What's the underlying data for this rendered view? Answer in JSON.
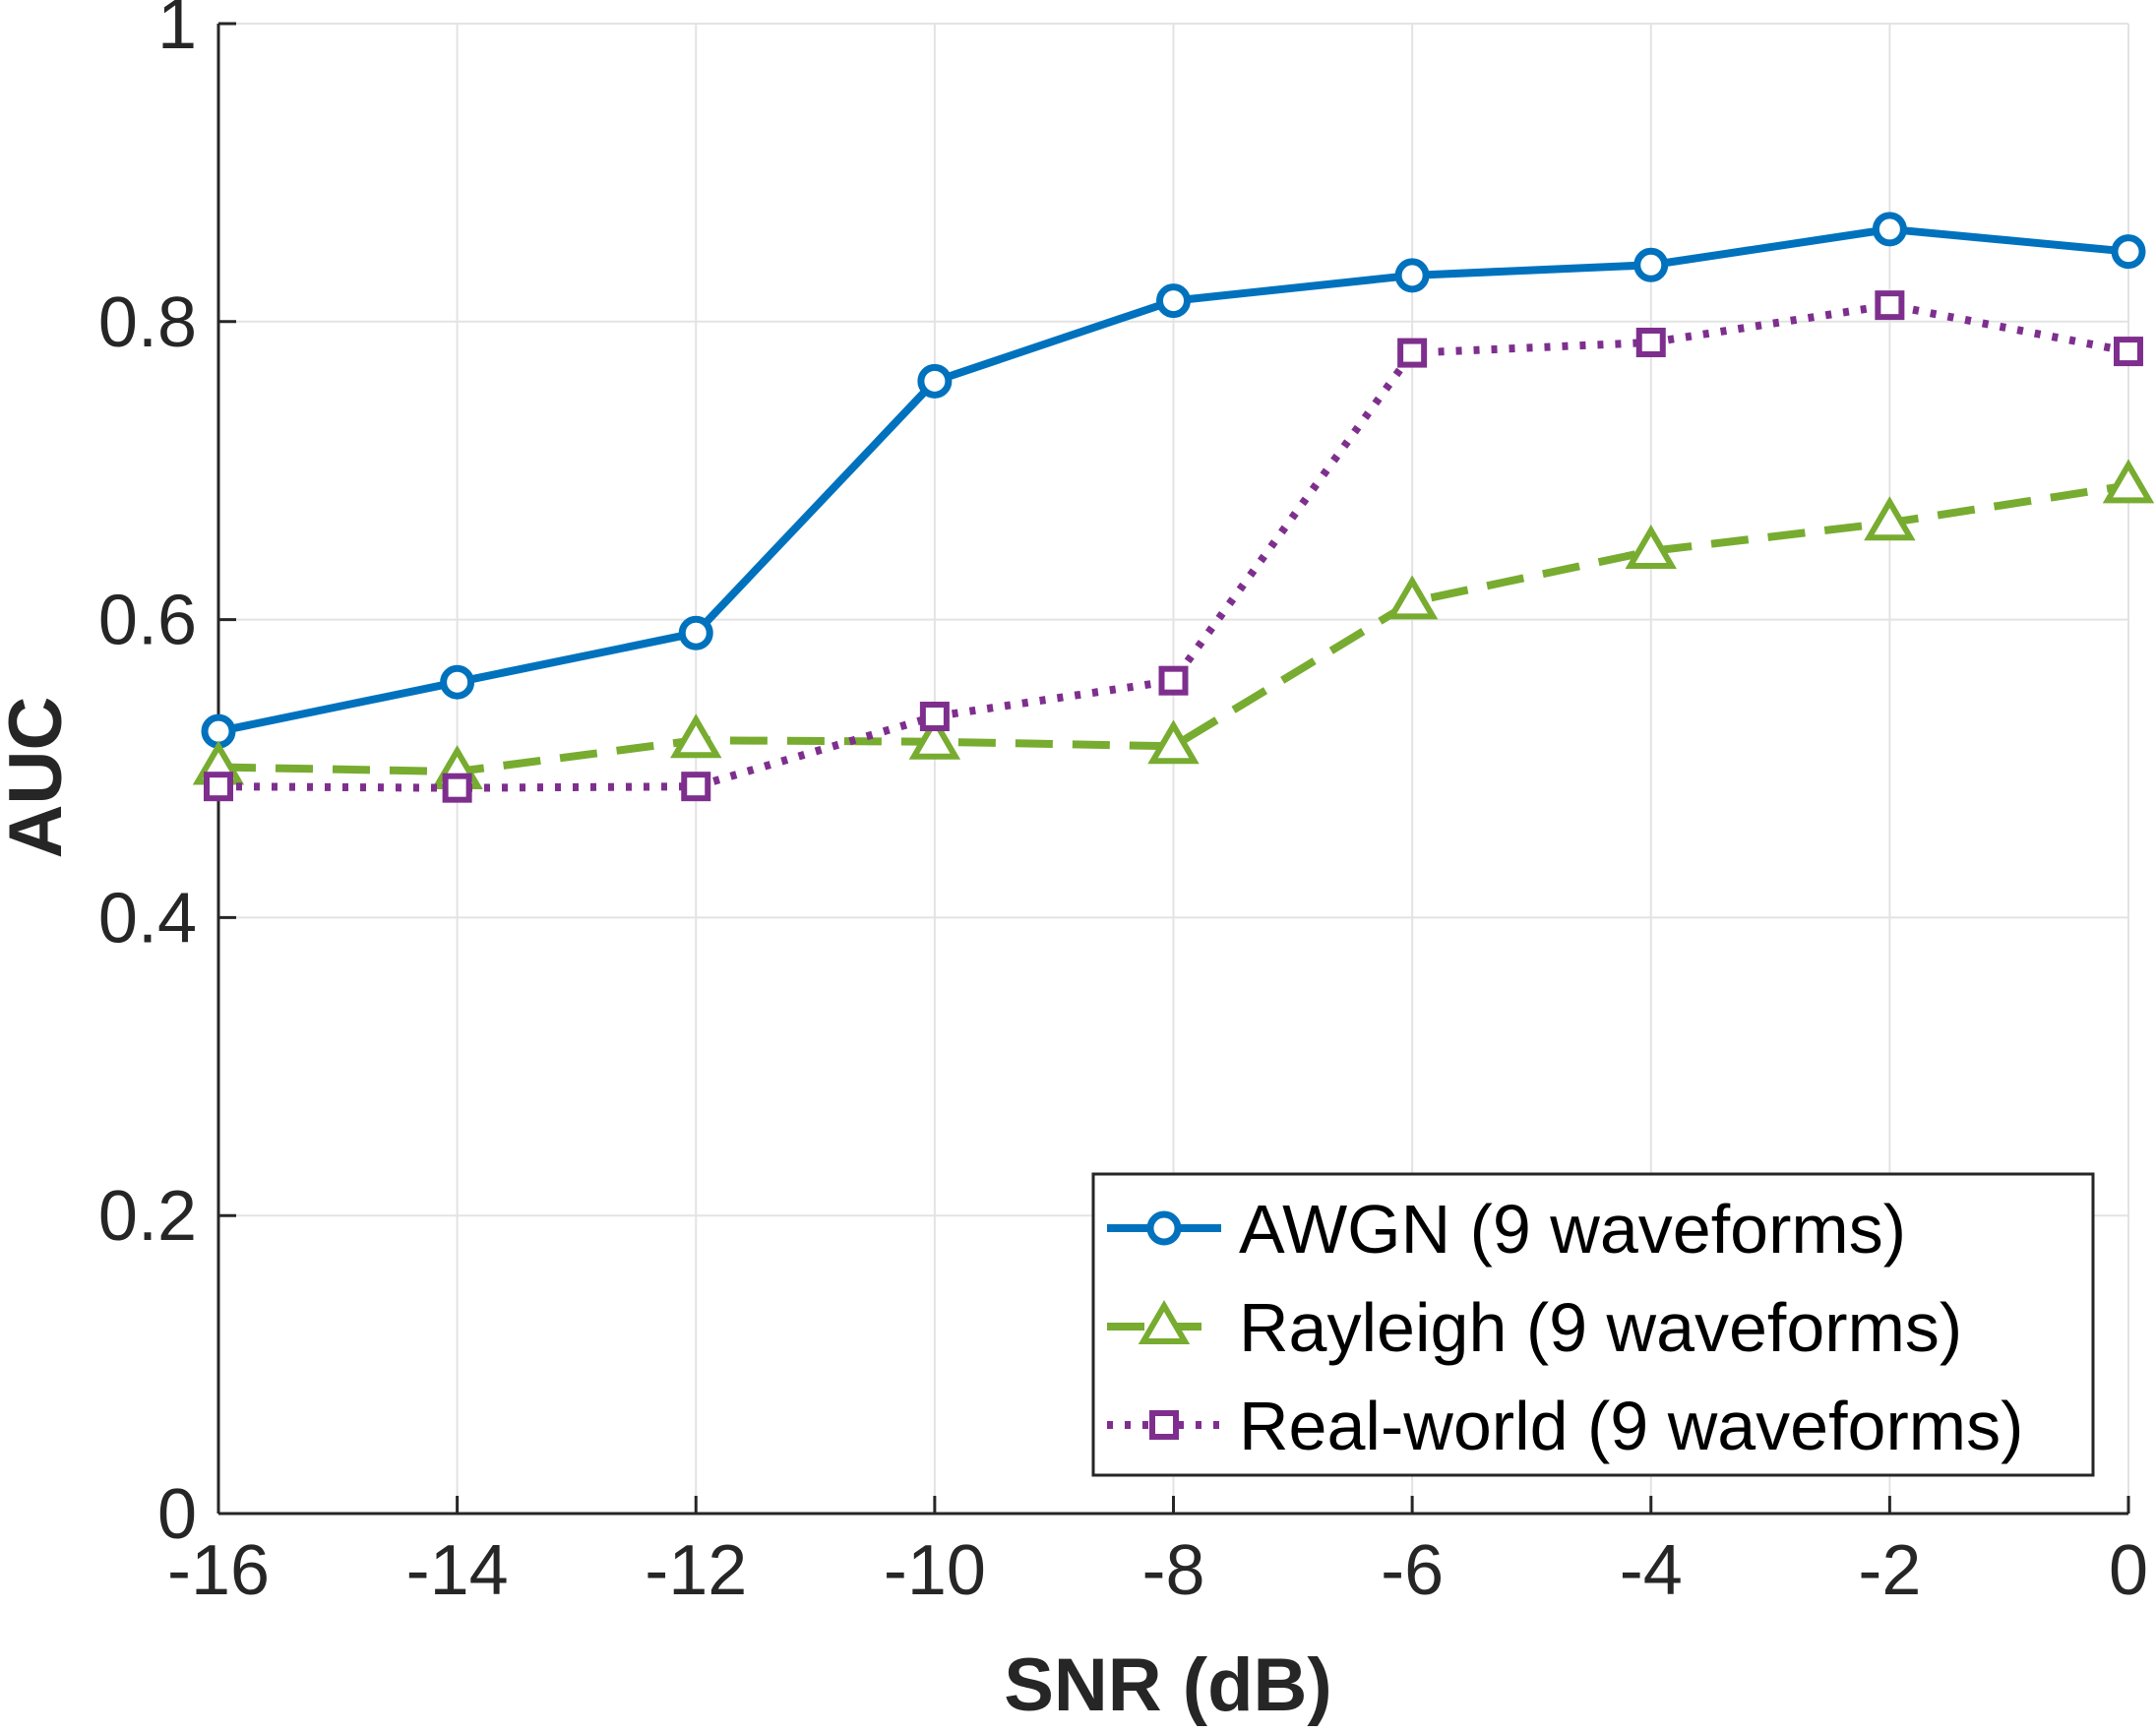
{
  "chart_data": {
    "type": "line",
    "title": "",
    "xlabel": "SNR (dB)",
    "ylabel": "AUC",
    "x": [
      -16,
      -14,
      -12,
      -10,
      -8,
      -6,
      -4,
      -2,
      0
    ],
    "xlim": [
      -16,
      0
    ],
    "ylim": [
      0,
      1
    ],
    "xticks": [
      -16,
      -14,
      -12,
      -10,
      -8,
      -6,
      -4,
      -2,
      0
    ],
    "yticks": [
      0,
      0.2,
      0.4,
      0.6,
      0.8,
      1
    ],
    "xtick_labels": [
      "-16",
      "-14",
      "-12",
      "-10",
      "-8",
      "-6",
      "-4",
      "-2",
      "0"
    ],
    "ytick_labels": [
      "0",
      "0.2",
      "0.4",
      "0.6",
      "0.8",
      "1"
    ],
    "grid": true,
    "legend_position": "bottom-right",
    "series": [
      {
        "name": "AWGN (9 waveforms)",
        "color": "#0072BD",
        "line_style": "solid",
        "marker": "circle",
        "values": [
          0.525,
          0.558,
          0.591,
          0.76,
          0.814,
          0.831,
          0.838,
          0.862,
          0.847
        ]
      },
      {
        "name": "Rayleigh (9 waveforms)",
        "color": "#77AC30",
        "line_style": "dashed",
        "marker": "triangle",
        "values": [
          0.501,
          0.498,
          0.519,
          0.518,
          0.515,
          0.612,
          0.646,
          0.665,
          0.69
        ]
      },
      {
        "name": "Real-world (9 waveforms)",
        "color": "#7E2F8E",
        "line_style": "dotted",
        "marker": "square",
        "values": [
          0.488,
          0.487,
          0.488,
          0.535,
          0.559,
          0.779,
          0.786,
          0.811,
          0.78
        ]
      }
    ]
  }
}
